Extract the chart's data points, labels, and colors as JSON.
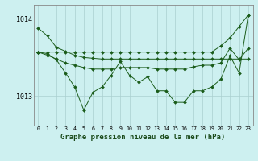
{
  "title": "Graphe pression niveau de la mer (hPa)",
  "bg_color": "#cdf0f0",
  "grid_color": "#aacfcf",
  "line_color": "#1a5c1a",
  "x_ticks": [
    0,
    1,
    2,
    3,
    4,
    5,
    6,
    7,
    8,
    9,
    10,
    11,
    12,
    13,
    14,
    15,
    16,
    17,
    18,
    19,
    20,
    21,
    22,
    23
  ],
  "ylim": [
    1012.62,
    1014.18
  ],
  "yticks": [
    1013,
    1014
  ],
  "series": [
    [
      1013.88,
      1013.78,
      1013.63,
      1013.58,
      1013.53,
      1013.5,
      1013.49,
      1013.48,
      1013.48,
      1013.48,
      1013.48,
      1013.48,
      1013.48,
      1013.48,
      1013.48,
      1013.48,
      1013.48,
      1013.48,
      1013.48,
      1013.48,
      1013.48,
      1013.48,
      1013.48,
      1013.48
    ],
    [
      1013.57,
      1013.57,
      1013.57,
      1013.57,
      1013.57,
      1013.57,
      1013.57,
      1013.57,
      1013.57,
      1013.57,
      1013.57,
      1013.57,
      1013.57,
      1013.57,
      1013.57,
      1013.57,
      1013.57,
      1013.57,
      1013.57,
      1013.57,
      1013.65,
      1013.75,
      1013.9,
      1014.05
    ],
    [
      1013.57,
      1013.55,
      1013.47,
      1013.3,
      1013.12,
      1012.82,
      1013.05,
      1013.12,
      1013.27,
      1013.45,
      1013.27,
      1013.18,
      1013.25,
      1013.07,
      1013.07,
      1012.92,
      1012.92,
      1013.07,
      1013.07,
      1013.12,
      1013.22,
      1013.52,
      1013.3,
      1014.05
    ],
    [
      1013.57,
      1013.53,
      1013.48,
      1013.43,
      1013.4,
      1013.37,
      1013.35,
      1013.35,
      1013.35,
      1013.37,
      1013.37,
      1013.37,
      1013.37,
      1013.35,
      1013.35,
      1013.35,
      1013.35,
      1013.38,
      1013.4,
      1013.4,
      1013.43,
      1013.62,
      1013.47,
      1013.62
    ]
  ]
}
